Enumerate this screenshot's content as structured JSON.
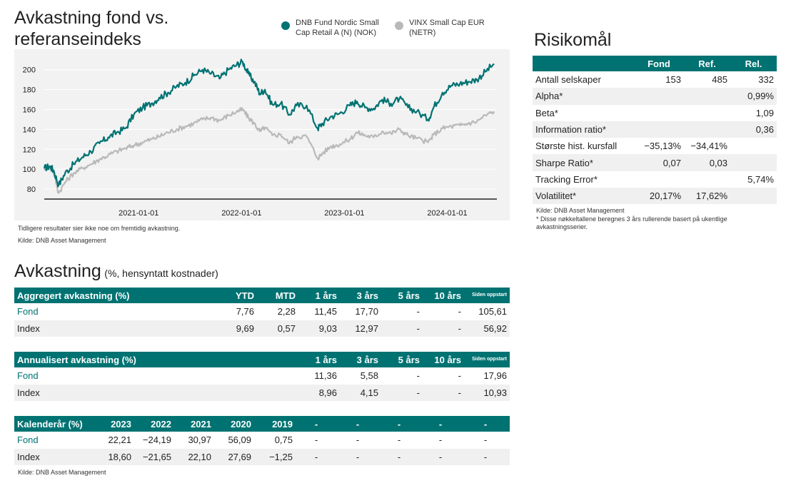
{
  "chart_section": {
    "title_line1": "Avkastning fond vs.",
    "title_line2": "referanseindeks",
    "note": "Tidligere resultater sier ikke noe om fremtidig avkastning.",
    "source": "Kilde: DNB Asset Management"
  },
  "legend": [
    {
      "label": "DNB Fund Nordic Small\nCap Retail A (N) (NOK)",
      "color": "#007272",
      "icon": "circle-icon"
    },
    {
      "label": "VINX Small Cap EUR\n(NETR)",
      "color": "#b9b9b9",
      "icon": "circle-icon"
    }
  ],
  "chart_data": {
    "type": "line",
    "title": "",
    "xlabel": "",
    "ylabel": "",
    "ylim": [
      70,
      212
    ],
    "xlim": [
      "2020-02-01",
      "2024-06-25"
    ],
    "yticks": [
      "80",
      "100",
      "120",
      "140",
      "160",
      "180",
      "200"
    ],
    "xticks": [
      "2021-01-01",
      "2022-01-01",
      "2023-01-01",
      "2024-01-01"
    ],
    "grid": true,
    "series": [
      {
        "name": "DNB Fund Nordic Small Cap Retail A (N) (NOK)",
        "color": "#007272",
        "x": [
          "2020-02-01",
          "2020-02-20",
          "2020-03-05",
          "2020-03-23",
          "2020-04-15",
          "2020-05-15",
          "2020-06-15",
          "2020-07-15",
          "2020-08-15",
          "2020-09-15",
          "2020-10-15",
          "2020-11-15",
          "2020-12-15",
          "2021-01-15",
          "2021-02-15",
          "2021-03-15",
          "2021-04-15",
          "2021-05-15",
          "2021-06-15",
          "2021-07-15",
          "2021-08-15",
          "2021-09-15",
          "2021-10-15",
          "2021-11-15",
          "2021-12-15",
          "2022-01-05",
          "2022-01-25",
          "2022-02-15",
          "2022-03-07",
          "2022-03-25",
          "2022-04-20",
          "2022-05-20",
          "2022-06-20",
          "2022-07-15",
          "2022-08-20",
          "2022-09-28",
          "2022-10-15",
          "2022-11-15",
          "2022-12-15",
          "2023-01-20",
          "2023-02-15",
          "2023-03-15",
          "2023-04-15",
          "2023-05-15",
          "2023-06-15",
          "2023-07-15",
          "2023-08-15",
          "2023-09-15",
          "2023-10-25",
          "2023-11-15",
          "2023-12-15",
          "2024-01-15",
          "2024-02-15",
          "2024-03-15",
          "2024-04-15",
          "2024-05-15",
          "2024-06-15"
        ],
        "values": [
          101,
          103,
          99,
          84,
          96,
          105,
          112,
          118,
          126,
          132,
          137,
          141,
          155,
          162,
          166,
          172,
          177,
          183,
          187,
          194,
          200,
          196,
          191,
          200,
          205,
          208,
          196,
          188,
          176,
          180,
          165,
          166,
          155,
          164,
          164,
          141,
          146,
          153,
          156,
          164,
          168,
          162,
          161,
          170,
          166,
          171,
          162,
          158,
          150,
          163,
          177,
          184,
          186,
          188,
          190,
          198,
          206
        ]
      },
      {
        "name": "VINX Small Cap EUR (NETR)",
        "color": "#b9b9b9",
        "x": [
          "2020-02-01",
          "2020-02-20",
          "2020-03-05",
          "2020-03-23",
          "2020-04-15",
          "2020-05-15",
          "2020-06-15",
          "2020-07-15",
          "2020-08-15",
          "2020-09-15",
          "2020-10-15",
          "2020-11-15",
          "2020-12-15",
          "2021-01-15",
          "2021-02-15",
          "2021-03-15",
          "2021-04-15",
          "2021-05-15",
          "2021-06-15",
          "2021-07-15",
          "2021-08-15",
          "2021-09-15",
          "2021-10-15",
          "2021-11-15",
          "2021-12-15",
          "2022-01-05",
          "2022-01-25",
          "2022-02-15",
          "2022-03-07",
          "2022-03-25",
          "2022-04-20",
          "2022-05-20",
          "2022-06-20",
          "2022-07-15",
          "2022-08-20",
          "2022-09-28",
          "2022-10-15",
          "2022-11-15",
          "2022-12-15",
          "2023-01-20",
          "2023-02-15",
          "2023-03-15",
          "2023-04-15",
          "2023-05-15",
          "2023-06-15",
          "2023-07-15",
          "2023-08-15",
          "2023-09-15",
          "2023-10-25",
          "2023-11-15",
          "2023-12-15",
          "2024-01-15",
          "2024-02-15",
          "2024-03-15",
          "2024-04-15",
          "2024-05-15",
          "2024-06-15"
        ],
        "values": [
          101,
          102,
          97,
          76,
          87,
          96,
          101,
          105,
          110,
          114,
          118,
          121,
          124,
          127,
          130,
          133,
          137,
          140,
          143,
          146,
          150,
          152,
          149,
          154,
          158,
          160,
          152,
          146,
          138,
          142,
          134,
          135,
          126,
          133,
          133,
          111,
          116,
          123,
          125,
          130,
          137,
          134,
          132,
          138,
          136,
          140,
          134,
          131,
          127,
          135,
          141,
          143,
          144,
          146,
          148,
          154,
          158
        ]
      }
    ]
  },
  "risk": {
    "title": "Risikomål",
    "headers": [
      "",
      "Fond",
      "Ref.",
      "Rel."
    ],
    "rows": [
      [
        "Antall selskaper",
        "153",
        "485",
        "332"
      ],
      [
        "Alpha*",
        "",
        "",
        "0,99%"
      ],
      [
        "Beta*",
        "",
        "",
        "1,09"
      ],
      [
        "Information ratio*",
        "",
        "",
        "0,36"
      ],
      [
        "Største hist. kursfall",
        "−35,13%",
        "−34,41%",
        ""
      ],
      [
        "Sharpe Ratio*",
        "0,07",
        "0,03",
        ""
      ],
      [
        "Tracking Error*",
        "",
        "",
        "5,74%"
      ],
      [
        "Volatilitet*",
        "20,17%",
        "17,62%",
        ""
      ]
    ],
    "source": "Kilde: DNB Asset Management",
    "footnote": "* Disse nøkkeltallene beregnes 3 års rullerende basert på ukentlige avkastningsserier."
  },
  "returns": {
    "title": "Avkastning",
    "subtitle": "(%, hensyntatt kostnader)",
    "aggregated": {
      "headers": [
        "Aggregert avkastning (%)",
        "YTD",
        "MTD",
        "1 års",
        "3 års",
        "5 års",
        "10 års",
        "Siden oppstart"
      ],
      "rows": [
        [
          "Fond",
          "7,76",
          "2,28",
          "11,45",
          "17,70",
          "-",
          "-",
          "105,61"
        ],
        [
          "Index",
          "9,69",
          "0,57",
          "9,03",
          "12,97",
          "-",
          "-",
          "56,92"
        ]
      ]
    },
    "annualized": {
      "headers": [
        "Annualisert avkastning (%)",
        "",
        "",
        "1 års",
        "3 års",
        "5 års",
        "10 års",
        "Siden oppstart"
      ],
      "rows": [
        [
          "Fond",
          "",
          "",
          "11,36",
          "5,58",
          "-",
          "-",
          "17,96"
        ],
        [
          "Index",
          "",
          "",
          "8,96",
          "4,15",
          "-",
          "-",
          "10,93"
        ]
      ]
    },
    "calendar": {
      "headers": [
        "Kalenderår (%)",
        "2023",
        "2022",
        "2021",
        "2020",
        "2019",
        "-",
        "-",
        "-",
        "-",
        "-"
      ],
      "rows": [
        [
          "Fond",
          "22,21",
          "−24,19",
          "30,97",
          "56,09",
          "0,75",
          "-",
          "-",
          "-",
          "-",
          "-"
        ],
        [
          "Index",
          "18,60",
          "−21,65",
          "22,10",
          "27,69",
          "−1,25",
          "-",
          "-",
          "-",
          "-",
          "-"
        ]
      ]
    },
    "source": "Kilde: DNB Asset Management"
  }
}
